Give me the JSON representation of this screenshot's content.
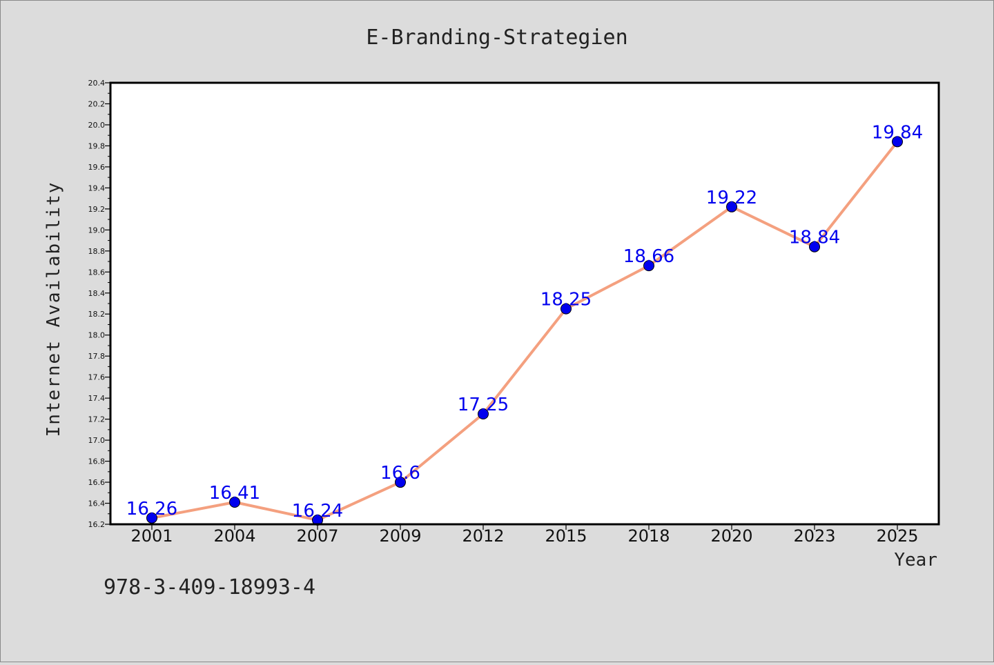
{
  "chart_data": {
    "type": "line",
    "title": "E-Branding-Strategien",
    "xlabel": "Year",
    "ylabel": "Internet Availability",
    "categories": [
      "2001",
      "2004",
      "2007",
      "2009",
      "2012",
      "2015",
      "2018",
      "2020",
      "2023",
      "2025"
    ],
    "series": [
      {
        "values": [
          16.26,
          16.41,
          16.24,
          16.6,
          17.25,
          18.25,
          18.66,
          19.22,
          18.84,
          19.84
        ],
        "data_labels": [
          "16.26",
          "16.41",
          "16.24",
          "16.6",
          "17.25",
          "18.25",
          "18.66",
          "19.22",
          "18.84",
          "19.84"
        ]
      }
    ],
    "ylim": [
      16.2,
      20.4
    ],
    "yticks": [
      "16.2",
      "16.4",
      "16.6",
      "16.8",
      "17.0",
      "17.2",
      "17.4",
      "17.6",
      "17.8",
      "18.0",
      "18.2",
      "18.4",
      "18.6",
      "18.8",
      "19.0",
      "19.2",
      "19.4",
      "19.6",
      "19.8",
      "20.0",
      "20.2",
      "20.4"
    ],
    "grid": false,
    "line_color": "#f4a07f",
    "marker_color": "#0000ee",
    "label_color": "#0000ee"
  },
  "caption": "978-3-409-18993-4"
}
